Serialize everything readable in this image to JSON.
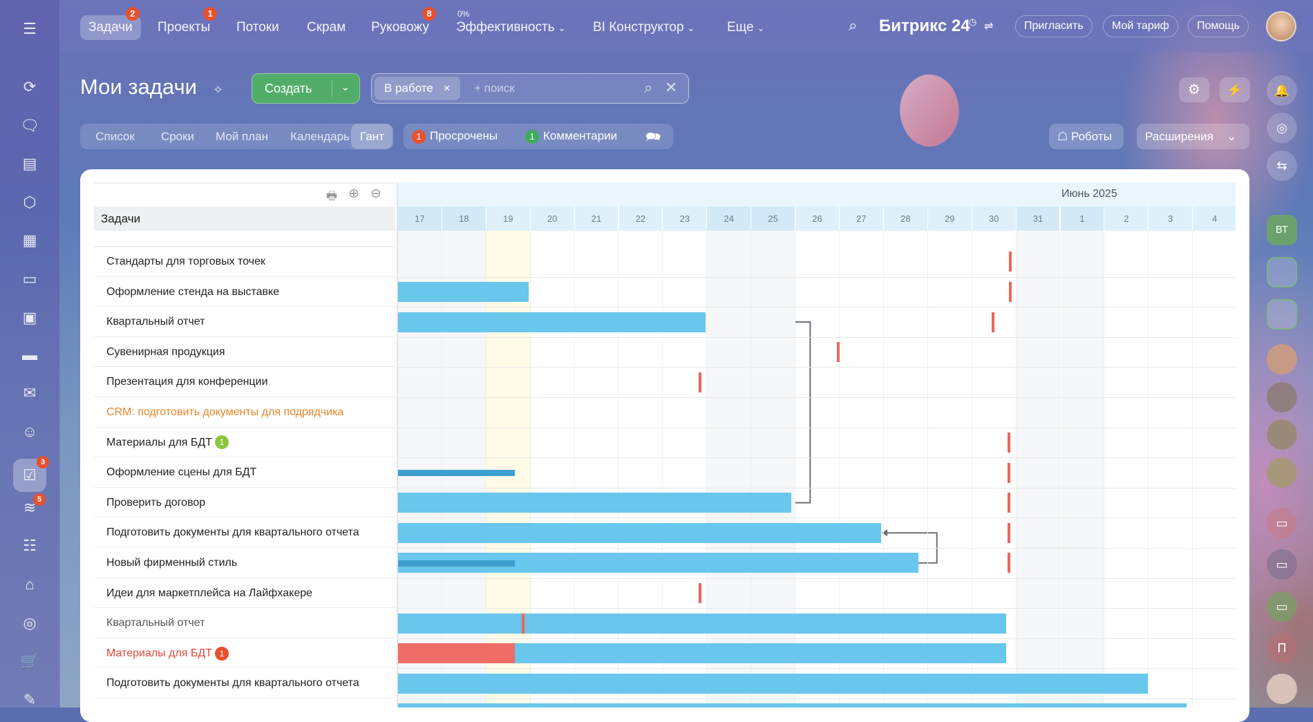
{
  "topnav": {
    "items": [
      {
        "label": "Задачи",
        "badge": "2",
        "active": true
      },
      {
        "label": "Проекты",
        "badge": "1"
      },
      {
        "label": "Потоки"
      },
      {
        "label": "Скрам"
      },
      {
        "label": "Руковожу",
        "badge": "8"
      },
      {
        "label": "Эффективность",
        "chev": true,
        "sup": "0%"
      },
      {
        "label": "BI Конструктор",
        "chev": true
      },
      {
        "label": "Еще",
        "chev": true
      }
    ],
    "brand": "Битрикс 24",
    "invite": "Пригласить",
    "tariff": "Мой тариф",
    "help": "Помощь"
  },
  "page": {
    "title": "Мои задачи",
    "create": "Создать",
    "filter_chip": "В работе",
    "search_placeholder": "+ поиск",
    "views": [
      "Список",
      "Сроки",
      "Мой план",
      "Календарь",
      "Гант"
    ],
    "counters": [
      {
        "count": "1",
        "label": "Просрочены",
        "color": "#e8502e"
      },
      {
        "count": "1",
        "label": "Комментарии",
        "color": "#3faa5a"
      }
    ],
    "robots": "Роботы",
    "extensions": "Расширения"
  },
  "leftbar": {
    "badges": {
      "tasks": "3",
      "feed": "5"
    }
  },
  "rightbar": {
    "group_label": "ВТ",
    "letter": "П"
  },
  "gantt": {
    "header_label": "Задачи",
    "month": "Июнь 2025",
    "days": [
      "17",
      "18",
      "19",
      "20",
      "21",
      "22",
      "23",
      "24",
      "25",
      "26",
      "27",
      "28",
      "29",
      "30",
      "31",
      "1",
      "2",
      "3",
      "4"
    ],
    "weekend": [
      0,
      1,
      7,
      8,
      14,
      15
    ],
    "today": 2,
    "rows": [
      {
        "name": "Стандарты для торговых точек",
        "deadline": 13.84
      },
      {
        "name": "Оформление стенда на выставке",
        "bar": [
          0,
          2.95
        ],
        "deadline": 13.84
      },
      {
        "name": "Квартальный отчет",
        "bar": [
          0,
          6.96
        ],
        "deadline": 13.44
      },
      {
        "name": "Сувенирная продукция",
        "deadline": 9.94
      },
      {
        "name": "Презентация для конференции",
        "deadline": 6.8
      },
      {
        "name": "CRM: подготовить документы для подрядчика",
        "color": "#e8862a"
      },
      {
        "name": "Материалы для БДТ",
        "badge": "1",
        "badge_color": "#8cc63f",
        "deadline": 13.8
      },
      {
        "name": "Оформление сцены для БДТ",
        "progress": [
          0,
          2.64
        ],
        "deadline": 13.8
      },
      {
        "name": "Проверить договор",
        "bar": [
          0,
          8.91
        ],
        "deadline": 13.8
      },
      {
        "name": "Подготовить документы для квартального отчета",
        "bar": [
          0,
          10.94
        ],
        "deadline": 13.8
      },
      {
        "name": "Новый фирменный стиль",
        "bar": [
          0,
          11.78
        ],
        "progress": [
          0,
          2.64
        ],
        "deadline": 13.8
      },
      {
        "name": "Идеи для маркетплейса на Лайфхакере",
        "deadline": 6.8
      },
      {
        "name": "Квартальный отчет",
        "color": "#555555",
        "bar": [
          0,
          13.77
        ],
        "marker": 2.8
      },
      {
        "name": "Материалы для БДТ",
        "color": "#e0463a",
        "badge": "1",
        "badge_color": "#e8502e",
        "bar": [
          0,
          13.77
        ],
        "overdue": [
          0,
          2.64
        ]
      },
      {
        "name": "Подготовить документы для квартального отчета",
        "bar": [
          0,
          16.98
        ]
      },
      {
        "name": "",
        "bar": [
          0,
          17.86
        ]
      }
    ],
    "dependencies": [
      {
        "from": 8,
        "to": 2
      },
      {
        "from": 10,
        "to": 9
      }
    ],
    "colors": {
      "bar": "#69c6ed",
      "deadline": "#f0645a",
      "progress": "#3b9fcf",
      "overdue": "#f06c66"
    }
  }
}
